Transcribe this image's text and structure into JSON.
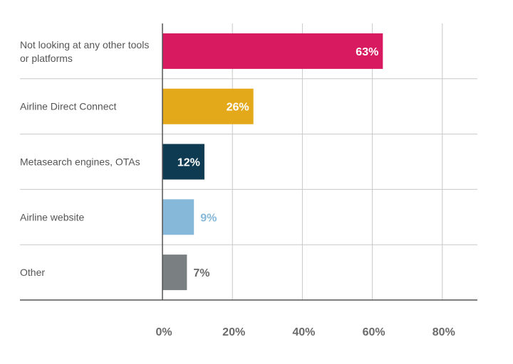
{
  "chart_data": {
    "type": "bar",
    "orientation": "horizontal",
    "categories": [
      [
        "Not looking at any other tools",
        "or platforms"
      ],
      [
        "Airline Direct Connect"
      ],
      [
        "Metasearch engines, OTAs"
      ],
      [
        "Airline website"
      ],
      [
        "Other"
      ]
    ],
    "values": [
      63,
      26,
      12,
      9,
      7
    ],
    "value_labels": [
      "63%",
      "26%",
      "12%",
      "9%",
      "7%"
    ],
    "bar_colors": [
      "#d81b60",
      "#e3a91b",
      "#0e3a52",
      "#86b8d9",
      "#7a7f82"
    ],
    "label_colors": [
      "#ffffff",
      "#ffffff",
      "#ffffff",
      "#86b8d9",
      "#6b6b6b"
    ],
    "label_inside": [
      true,
      true,
      true,
      false,
      false
    ],
    "xlim": [
      0,
      90
    ],
    "xticks": [
      0,
      20,
      40,
      60,
      80
    ],
    "xtick_labels": [
      "0%",
      "20%",
      "40%",
      "60%",
      "80%"
    ],
    "grid": true,
    "legend": "none"
  }
}
